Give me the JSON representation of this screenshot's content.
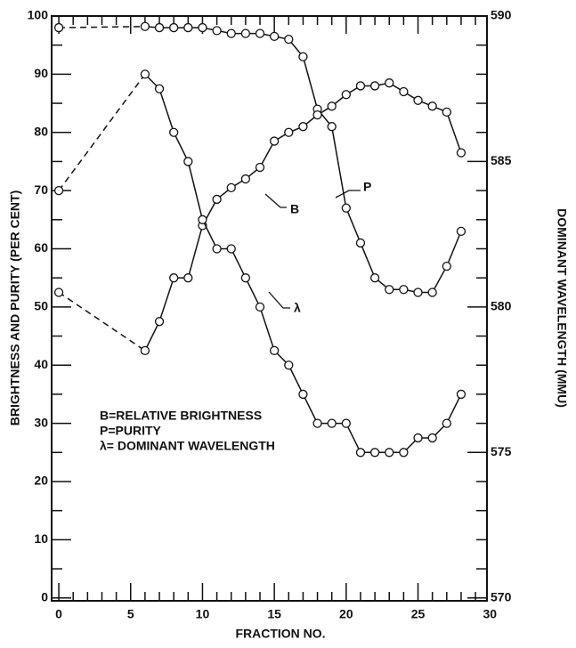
{
  "chart_data": {
    "type": "line",
    "x_label": "FRACTION   NO.",
    "y_label": "BRIGHTNESS AND PURITY (PER CENT)",
    "y2_label": "DOMINANT WAVELENGTH (MMU)",
    "x": [
      0,
      6,
      7,
      8,
      9,
      10,
      11,
      12,
      13,
      14,
      15,
      16,
      17,
      18,
      19,
      20,
      21,
      22,
      23,
      24,
      25,
      26,
      27,
      28
    ],
    "series": [
      {
        "name": "P",
        "color": "#111111",
        "values": [
          98,
          98.2,
          98,
          98,
          98,
          98,
          97.5,
          97,
          97,
          97,
          96.5,
          96,
          93,
          84,
          81,
          67,
          61,
          55,
          53,
          53,
          52.5,
          52.5,
          57,
          63
        ]
      },
      {
        "name": "B",
        "color": "#111111",
        "values": [
          52.5,
          42.5,
          47.5,
          55,
          55,
          64,
          68.5,
          70.5,
          72,
          74,
          78.5,
          80,
          81,
          83,
          84.5,
          86.5,
          88,
          88,
          88.5,
          87,
          85.5,
          84.5,
          83.5,
          76.5
        ]
      },
      {
        "name": "λ",
        "color": "#111111",
        "axis": "y2",
        "values": [
          584,
          588,
          587.5,
          586,
          585,
          583,
          582,
          582,
          581,
          580,
          578.5,
          578,
          577,
          576,
          576,
          576,
          575,
          575,
          575,
          575,
          575.5,
          575.5,
          576,
          577
        ]
      }
    ],
    "legend_lines": [
      "B=RELATIVE  BRIGHTNESS",
      "P=PURITY",
      "λ= DOMINANT  WAVELENGTH"
    ],
    "xlim": [
      -0.5,
      29.8
    ],
    "xticks": [
      0,
      5,
      10,
      15,
      20,
      25,
      30
    ],
    "ylim": [
      -0.5,
      100
    ],
    "yticks": [
      0,
      10,
      20,
      30,
      40,
      50,
      60,
      70,
      80,
      90,
      100
    ],
    "y2lim": [
      569.9,
      590
    ],
    "y2ticks": [
      570,
      575,
      580,
      585,
      590
    ]
  }
}
